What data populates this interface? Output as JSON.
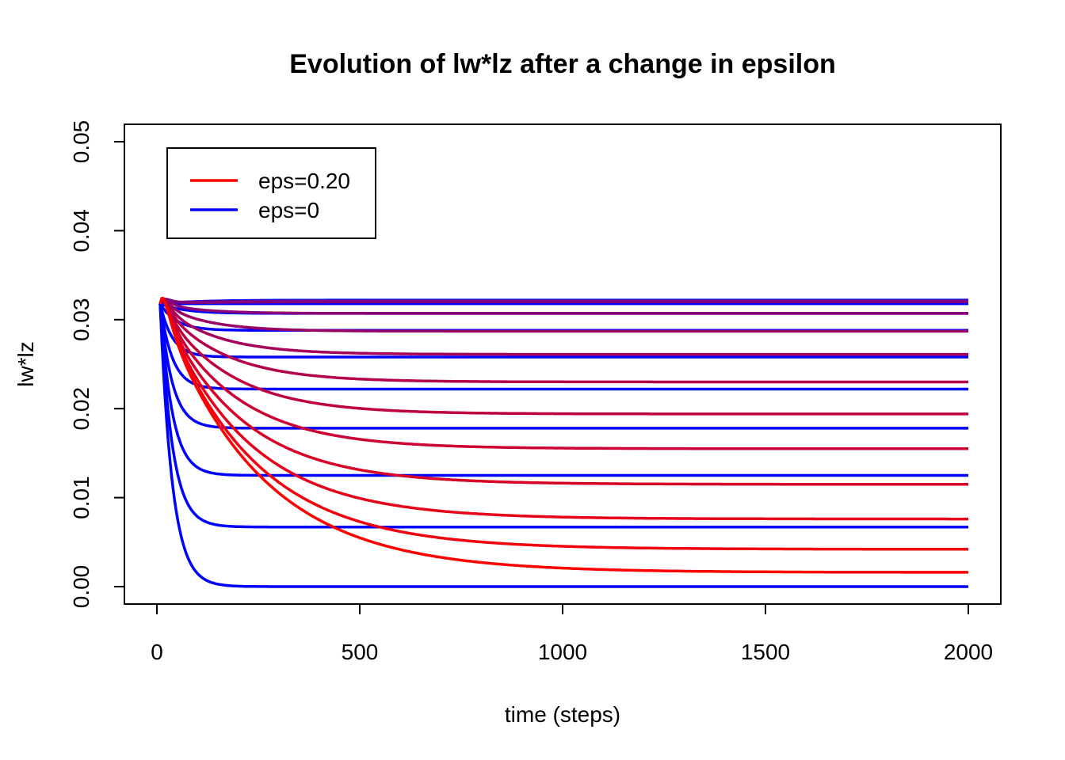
{
  "chart_data": {
    "type": "line",
    "title": "Evolution of lw*lz after a change in epsilon",
    "xlabel": "time (steps)",
    "ylabel": "lw*lz",
    "xlim": [
      0,
      2000
    ],
    "ylim": [
      0,
      0.05
    ],
    "x_ticks": [
      "0",
      "500",
      "1000",
      "1500",
      "2000"
    ],
    "y_ticks": [
      "0.00",
      "0.01",
      "0.02",
      "0.03",
      "0.04",
      "0.05"
    ],
    "grid": false,
    "legend": {
      "placement": "top-left",
      "entries": [
        {
          "label": "eps=0.20",
          "color": "#ff0000"
        },
        {
          "label": "eps=0",
          "color": "#0000ff"
        }
      ]
    },
    "colors": {
      "red": "#ff0000",
      "blue": "#0000ff"
    },
    "series": [
      {
        "t": 0.0,
        "start": 0.0318,
        "end": 0.0,
        "overshoot": 0.0,
        "tau": 30
      },
      {
        "t": 0.0,
        "start": 0.0318,
        "end": 0.0067,
        "overshoot": 0.0,
        "tau": 30
      },
      {
        "t": 0.0,
        "start": 0.0318,
        "end": 0.0125,
        "overshoot": 0.0,
        "tau": 30
      },
      {
        "t": 0.0,
        "start": 0.0318,
        "end": 0.0178,
        "overshoot": 0.0,
        "tau": 30
      },
      {
        "t": 0.0,
        "start": 0.0318,
        "end": 0.0222,
        "overshoot": 0.0,
        "tau": 30
      },
      {
        "t": 0.0,
        "start": 0.0318,
        "end": 0.0258,
        "overshoot": 0.0,
        "tau": 30
      },
      {
        "t": 0.0,
        "start": 0.0318,
        "end": 0.0288,
        "overshoot": 0.0,
        "tau": 40
      },
      {
        "t": 0.0,
        "start": 0.0318,
        "end": 0.0307,
        "overshoot": 0.0,
        "tau": 60
      },
      {
        "t": 0.0,
        "start": 0.0318,
        "end": 0.0318,
        "overshoot": 0.0,
        "tau": 80
      },
      {
        "t": 0.0,
        "start": 0.0318,
        "end": 0.0322,
        "overshoot": 0.0,
        "tau": 100
      },
      {
        "t": 0.45,
        "start": 0.0318,
        "end": 0.0321,
        "overshoot": 0.0004,
        "tau": 100
      },
      {
        "t": 0.5,
        "start": 0.0318,
        "end": 0.032,
        "overshoot": 0.0005,
        "tau": 120
      },
      {
        "t": 0.55,
        "start": 0.0318,
        "end": 0.0307,
        "overshoot": 0.0006,
        "tau": 100
      },
      {
        "t": 0.6,
        "start": 0.0318,
        "end": 0.0287,
        "overshoot": 0.0007,
        "tau": 110
      },
      {
        "t": 0.65,
        "start": 0.0318,
        "end": 0.0261,
        "overshoot": 0.0008,
        "tau": 130
      },
      {
        "t": 0.7,
        "start": 0.0318,
        "end": 0.023,
        "overshoot": 0.0009,
        "tau": 150
      },
      {
        "t": 0.75,
        "start": 0.0318,
        "end": 0.0194,
        "overshoot": 0.001,
        "tau": 165
      },
      {
        "t": 0.8,
        "start": 0.0318,
        "end": 0.0155,
        "overshoot": 0.0012,
        "tau": 180
      },
      {
        "t": 0.85,
        "start": 0.0318,
        "end": 0.0115,
        "overshoot": 0.0013,
        "tau": 195
      },
      {
        "t": 0.9,
        "start": 0.0318,
        "end": 0.0076,
        "overshoot": 0.0014,
        "tau": 210
      },
      {
        "t": 0.95,
        "start": 0.0318,
        "end": 0.0042,
        "overshoot": 0.0016,
        "tau": 225
      },
      {
        "t": 1.0,
        "start": 0.0318,
        "end": 0.0016,
        "overshoot": 0.0017,
        "tau": 240
      }
    ]
  }
}
